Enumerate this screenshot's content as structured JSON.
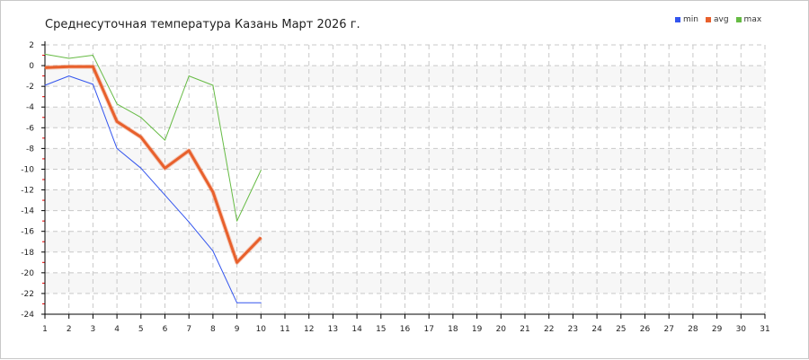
{
  "chart_data": {
    "type": "line",
    "title": "Среднесуточная температура Казань  Март 2026 г.",
    "xlabel": "",
    "ylabel": "",
    "xlim": [
      1,
      31
    ],
    "ylim": [
      -24,
      2
    ],
    "x_ticks": [
      1,
      2,
      3,
      4,
      5,
      6,
      7,
      8,
      9,
      10,
      11,
      12,
      13,
      14,
      15,
      16,
      17,
      18,
      19,
      20,
      21,
      22,
      23,
      24,
      25,
      26,
      27,
      28,
      29,
      30,
      31
    ],
    "y_ticks": [
      2,
      0,
      -2,
      -4,
      -6,
      -8,
      -10,
      -12,
      -14,
      -16,
      -18,
      -20,
      -22,
      -24
    ],
    "grid": true,
    "legend_position": "top-right",
    "x": [
      1,
      2,
      3,
      4,
      5,
      6,
      7,
      8,
      9,
      10
    ],
    "series": [
      {
        "name": "min",
        "color": "#3355ee",
        "values": [
          -1.9,
          -1.0,
          -1.8,
          -8.0,
          -9.9,
          -12.5,
          -15.1,
          -17.9,
          -22.9,
          -22.9
        ]
      },
      {
        "name": "avg",
        "color": "#e8602c",
        "values": [
          -0.2,
          -0.1,
          -0.1,
          -5.4,
          -6.9,
          -9.9,
          -8.2,
          -12.2,
          -19.0,
          -16.6
        ]
      },
      {
        "name": "max",
        "color": "#66bb44",
        "values": [
          1.1,
          0.7,
          1.0,
          -3.7,
          -5.0,
          -7.2,
          -1.0,
          -1.9,
          -15.0,
          -10.1
        ]
      }
    ]
  }
}
